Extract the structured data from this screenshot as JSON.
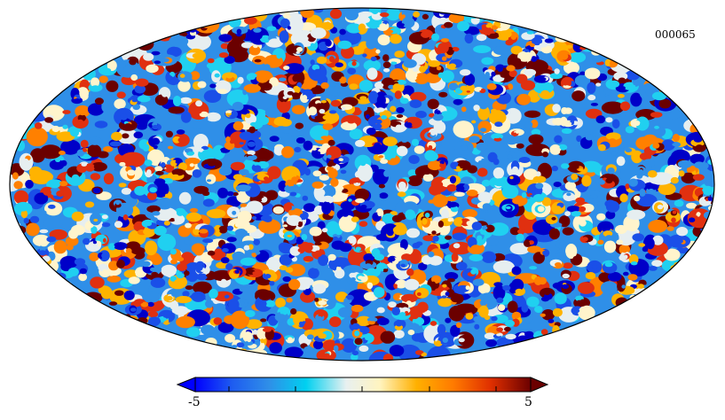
{
  "map": {
    "id_label": "000065",
    "projection": "mollweide",
    "palette": [
      "#0000c8",
      "#1a4fe8",
      "#2f8fe8",
      "#20d0f0",
      "#e6eef0",
      "#fff4cc",
      "#ffb300",
      "#ff8000",
      "#e03010",
      "#6b0000"
    ]
  },
  "colorbar": {
    "min_label": "-5",
    "max_label": "5",
    "range": [
      -5,
      5
    ],
    "colors": [
      "#0000ff",
      "#1e5cf0",
      "#2f8fe8",
      "#00d0f0",
      "#e8f0f0",
      "#fff4c0",
      "#ffb000",
      "#ff7a00",
      "#e03000",
      "#6b0000"
    ]
  }
}
